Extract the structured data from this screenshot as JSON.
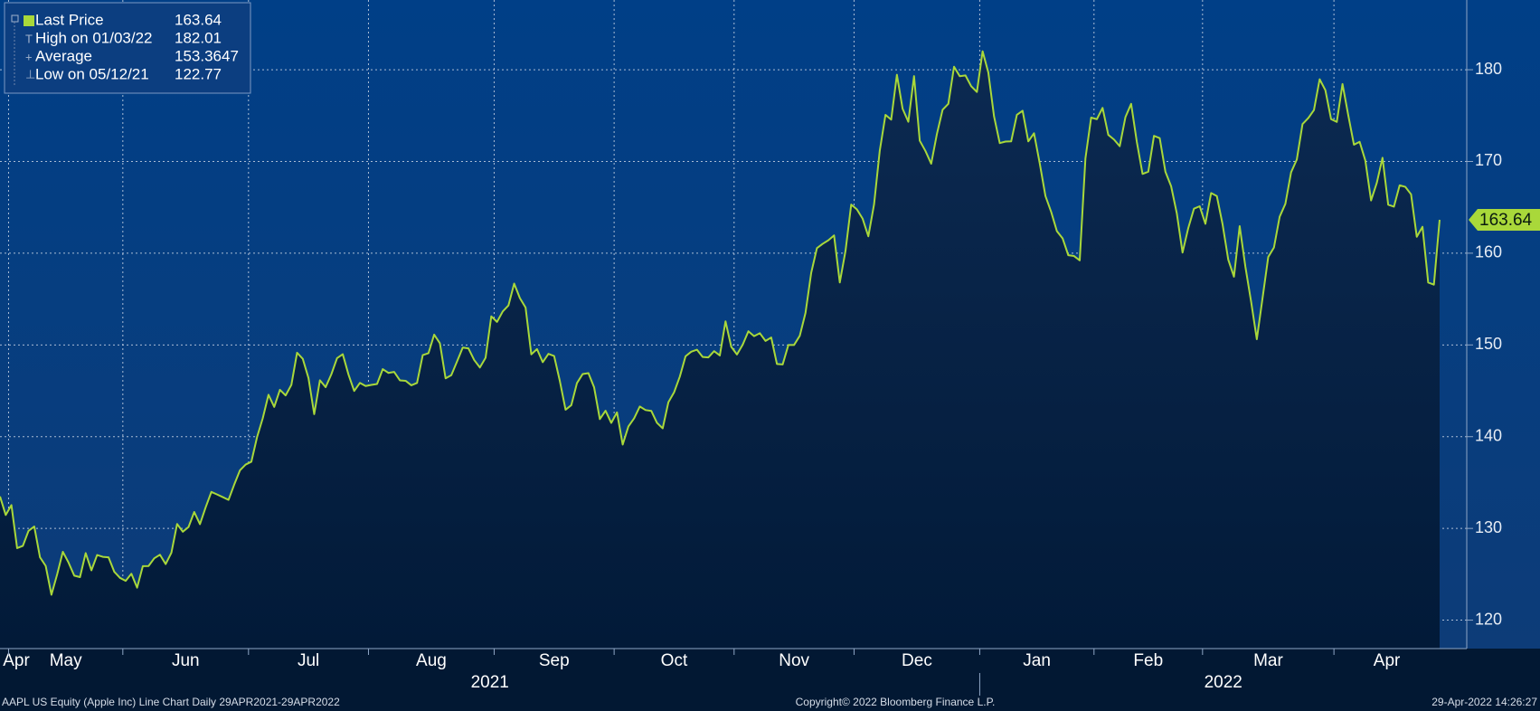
{
  "chart_data": {
    "type": "line",
    "legend": [
      {
        "label": "Last Price",
        "value": 163.64
      },
      {
        "label": "High on 01/03/22",
        "value": 182.01
      },
      {
        "label": "Average",
        "value": 153.3647
      },
      {
        "label": "Low on 05/12/21",
        "value": 122.77
      }
    ],
    "years": [
      "2021",
      "2022"
    ],
    "footer": {
      "left": "AAPL US Equity (Apple Inc) Line Chart  Daily 29APR2021-29APR2022",
      "center": "Copyright© 2022 Bloomberg Finance L.P.",
      "right": "29-Apr-2022 14:26:27"
    },
    "ylim": [
      116.9,
      187.6
    ],
    "yticks": [
      120,
      130,
      140,
      150,
      160,
      170,
      180
    ],
    "grid": true,
    "categories": [
      "Apr",
      null,
      "May",
      null,
      null,
      null,
      null,
      null,
      null,
      null,
      null,
      null,
      null,
      null,
      null,
      null,
      null,
      null,
      null,
      null,
      null,
      null,
      "Jun",
      null,
      null,
      null,
      null,
      null,
      null,
      null,
      null,
      null,
      null,
      null,
      null,
      null,
      null,
      null,
      null,
      null,
      null,
      null,
      null,
      null,
      "Jul",
      null,
      null,
      null,
      null,
      null,
      null,
      null,
      null,
      null,
      null,
      null,
      null,
      null,
      null,
      null,
      null,
      null,
      null,
      null,
      null,
      "Aug",
      null,
      null,
      null,
      null,
      null,
      null,
      null,
      null,
      null,
      null,
      null,
      null,
      null,
      null,
      null,
      null,
      null,
      null,
      null,
      null,
      null,
      "Sep",
      null,
      null,
      null,
      null,
      null,
      null,
      null,
      null,
      null,
      null,
      null,
      null,
      null,
      null,
      null,
      null,
      null,
      null,
      null,
      null,
      "Oct",
      null,
      null,
      null,
      null,
      null,
      null,
      null,
      null,
      null,
      null,
      null,
      null,
      null,
      null,
      null,
      null,
      null,
      null,
      null,
      null,
      "Nov",
      null,
      null,
      null,
      null,
      null,
      null,
      null,
      null,
      null,
      null,
      null,
      null,
      null,
      null,
      null,
      null,
      null,
      null,
      null,
      null,
      "Dec",
      null,
      null,
      null,
      null,
      null,
      null,
      null,
      null,
      null,
      null,
      null,
      null,
      null,
      null,
      null,
      null,
      null,
      null,
      null,
      null,
      null,
      "Jan",
      null,
      null,
      null,
      null,
      null,
      null,
      null,
      null,
      null,
      null,
      null,
      null,
      null,
      null,
      null,
      null,
      null,
      null,
      null,
      "Feb",
      null,
      null,
      null,
      null,
      null,
      null,
      null,
      null,
      null,
      null,
      null,
      null,
      null,
      null,
      null,
      null,
      null,
      null,
      "Mar",
      null,
      null,
      null,
      null,
      null,
      null,
      null,
      null,
      null,
      null,
      null,
      null,
      null,
      null,
      null,
      null,
      null,
      null,
      null,
      null,
      null,
      null,
      "Apr",
      null,
      null,
      null,
      null,
      null,
      null,
      null,
      null,
      null,
      null,
      null,
      null,
      null,
      null,
      null,
      null,
      null,
      null
    ],
    "series": [
      {
        "name": "Last Price",
        "color": "#a9d83a",
        "values": [
          133.48,
          131.46,
          132.54,
          127.85,
          128.1,
          129.74,
          130.21,
          126.85,
          125.91,
          122.77,
          124.97,
          127.45,
          126.27,
          124.85,
          124.69,
          127.31,
          125.43,
          127.1,
          126.9,
          126.85,
          125.28,
          124.61,
          124.28,
          125.06,
          123.54,
          125.89,
          125.9,
          126.74,
          127.13,
          126.11,
          127.35,
          130.48,
          129.64,
          130.15,
          131.79,
          130.46,
          132.3,
          133.98,
          133.7,
          133.41,
          133.11,
          134.78,
          136.33,
          136.96,
          137.27,
          139.96,
          142.02,
          144.57,
          143.24,
          145.11,
          144.5,
          145.64,
          149.15,
          148.48,
          146.39,
          142.45,
          146.15,
          145.4,
          146.8,
          148.56,
          148.99,
          146.77,
          144.98,
          145.86,
          145.52,
          145.64,
          145.74,
          147.36,
          146.95,
          147.06,
          146.14,
          146.09,
          145.6,
          145.86,
          148.89,
          149.1,
          151.12,
          150.19,
          146.36,
          146.7,
          148.19,
          149.71,
          149.62,
          148.36,
          147.54,
          148.6,
          153.12,
          152.51,
          153.65,
          154.3,
          156.69,
          155.11,
          154.07,
          148.97,
          149.55,
          148.12,
          149.03,
          148.79,
          146.06,
          142.94,
          143.43,
          145.85,
          146.83,
          146.92,
          145.37,
          141.91,
          142.83,
          141.5,
          142.65,
          139.14,
          141.11,
          142.0,
          143.29,
          142.9,
          142.81,
          141.51,
          140.91,
          143.76,
          144.84,
          146.55,
          148.76,
          149.26,
          149.48,
          148.69,
          148.64,
          149.32,
          148.85,
          152.57,
          149.8,
          148.96,
          150.02,
          151.49,
          150.96,
          151.28,
          150.44,
          150.81,
          147.92,
          147.87,
          149.99,
          150.0,
          151.0,
          153.49,
          157.87,
          160.55,
          161.02,
          161.41,
          161.94,
          156.81,
          160.24,
          165.3,
          164.77,
          163.76,
          161.84,
          165.32,
          171.18,
          175.08,
          174.56,
          179.45,
          175.74,
          174.33,
          179.3,
          172.26,
          171.14,
          169.75,
          172.99,
          175.64,
          176.28,
          180.33,
          179.29,
          179.38,
          178.2,
          177.57,
          182.01,
          179.7,
          174.92,
          172.0,
          172.17,
          172.19,
          175.08,
          175.53,
          172.19,
          173.07,
          169.8,
          166.23,
          164.51,
          162.41,
          161.62,
          159.78,
          159.69,
          159.22,
          170.33,
          174.78,
          174.61,
          175.84,
          172.9,
          172.39,
          171.66,
          174.83,
          176.28,
          172.12,
          168.64,
          168.88,
          172.79,
          172.55,
          168.88,
          167.3,
          164.32,
          160.07,
          162.74,
          164.85,
          165.12,
          163.2,
          166.56,
          166.23,
          163.17,
          159.3,
          157.44,
          162.95,
          158.52,
          154.73,
          150.62,
          155.09,
          159.59,
          160.62,
          163.98,
          165.38,
          168.82,
          170.21,
          174.07,
          174.72,
          175.6,
          178.96,
          177.77,
          174.61,
          174.31,
          178.44,
          175.06,
          171.83,
          172.14,
          170.09,
          165.75,
          167.66,
          170.4,
          165.29,
          165.07,
          167.4,
          167.23,
          166.42,
          161.79,
          162.88,
          156.8,
          156.57,
          163.64
        ]
      }
    ]
  }
}
